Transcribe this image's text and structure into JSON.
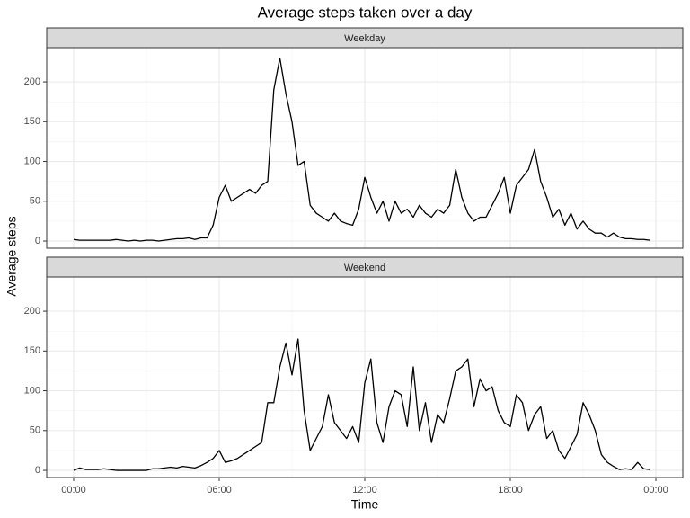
{
  "title": "Average steps taken over a day",
  "x_label": "Time",
  "y_label": "Average steps",
  "chart_data": [
    {
      "type": "line",
      "panel": "Weekday",
      "color": "#000000",
      "x": [
        0,
        0.25,
        0.5,
        0.75,
        1,
        1.25,
        1.5,
        1.75,
        2,
        2.25,
        2.5,
        2.75,
        3,
        3.25,
        3.5,
        3.75,
        4,
        4.25,
        4.5,
        4.75,
        5,
        5.25,
        5.5,
        5.75,
        6,
        6.25,
        6.5,
        6.75,
        7,
        7.25,
        7.5,
        7.75,
        8,
        8.25,
        8.5,
        8.75,
        9,
        9.25,
        9.5,
        9.75,
        10,
        10.25,
        10.5,
        10.75,
        11,
        11.25,
        11.5,
        11.75,
        12,
        12.25,
        12.5,
        12.75,
        13,
        13.25,
        13.5,
        13.75,
        14,
        14.25,
        14.5,
        14.75,
        15,
        15.25,
        15.5,
        15.75,
        16,
        16.25,
        16.5,
        16.75,
        17,
        17.25,
        17.5,
        17.75,
        18,
        18.25,
        18.5,
        18.75,
        19,
        19.25,
        19.5,
        19.75,
        20,
        20.25,
        20.5,
        20.75,
        21,
        21.25,
        21.5,
        21.75,
        22,
        22.25,
        22.5,
        22.75,
        23,
        23.25,
        23.5,
        23.75
      ],
      "values": [
        2,
        1,
        1,
        1,
        1,
        1,
        1,
        2,
        1,
        0,
        1,
        0,
        1,
        1,
        0,
        1,
        2,
        3,
        3,
        4,
        2,
        4,
        4,
        20,
        55,
        70,
        50,
        55,
        60,
        65,
        60,
        70,
        75,
        190,
        230,
        185,
        150,
        95,
        100,
        45,
        35,
        30,
        25,
        35,
        25,
        22,
        20,
        40,
        80,
        55,
        35,
        50,
        25,
        50,
        35,
        40,
        30,
        45,
        35,
        30,
        40,
        35,
        45,
        90,
        55,
        35,
        25,
        30,
        30,
        45,
        60,
        80,
        35,
        70,
        80,
        90,
        115,
        75,
        55,
        30,
        40,
        20,
        35,
        15,
        25,
        15,
        10,
        10,
        5,
        10,
        5,
        3,
        3,
        2,
        2,
        1
      ],
      "xlim": [
        -1.11,
        25.11
      ],
      "ylim": [
        -9,
        243
      ],
      "yticks": [
        0,
        50,
        100,
        150,
        200
      ],
      "grid": true
    },
    {
      "type": "line",
      "panel": "Weekend",
      "color": "#000000",
      "x": [
        0,
        0.25,
        0.5,
        0.75,
        1,
        1.25,
        1.5,
        1.75,
        2,
        2.25,
        2.5,
        2.75,
        3,
        3.25,
        3.5,
        3.75,
        4,
        4.25,
        4.5,
        4.75,
        5,
        5.25,
        5.5,
        5.75,
        6,
        6.25,
        6.5,
        6.75,
        7,
        7.25,
        7.5,
        7.75,
        8,
        8.25,
        8.5,
        8.75,
        9,
        9.25,
        9.5,
        9.75,
        10,
        10.25,
        10.5,
        10.75,
        11,
        11.25,
        11.5,
        11.75,
        12,
        12.25,
        12.5,
        12.75,
        13,
        13.25,
        13.5,
        13.75,
        14,
        14.25,
        14.5,
        14.75,
        15,
        15.25,
        15.5,
        15.75,
        16,
        16.25,
        16.5,
        16.75,
        17,
        17.25,
        17.5,
        17.75,
        18,
        18.25,
        18.5,
        18.75,
        19,
        19.25,
        19.5,
        19.75,
        20,
        20.25,
        20.5,
        20.75,
        21,
        21.25,
        21.5,
        21.75,
        22,
        22.25,
        22.5,
        22.75,
        23,
        23.25,
        23.5,
        23.75
      ],
      "values": [
        0,
        3,
        1,
        1,
        1,
        2,
        1,
        0,
        0,
        0,
        0,
        0,
        0,
        2,
        2,
        3,
        4,
        3,
        5,
        4,
        3,
        6,
        10,
        15,
        25,
        10,
        12,
        15,
        20,
        25,
        30,
        35,
        85,
        85,
        130,
        160,
        120,
        165,
        75,
        25,
        40,
        55,
        95,
        60,
        50,
        40,
        55,
        35,
        110,
        140,
        60,
        35,
        80,
        100,
        95,
        55,
        130,
        50,
        85,
        35,
        70,
        60,
        90,
        125,
        130,
        140,
        80,
        115,
        100,
        105,
        75,
        60,
        55,
        95,
        85,
        50,
        70,
        80,
        40,
        50,
        25,
        15,
        30,
        45,
        85,
        70,
        50,
        20,
        10,
        5,
        1,
        2,
        1,
        10,
        2,
        1
      ],
      "xlim": [
        -1.11,
        25.11
      ],
      "ylim": [
        -9,
        243
      ],
      "yticks": [
        0,
        50,
        100,
        150,
        200
      ],
      "grid": true,
      "xticks": [
        {
          "value": 0,
          "label": "00:00"
        },
        {
          "value": 6,
          "label": "06:00"
        },
        {
          "value": 12,
          "label": "12:00"
        },
        {
          "value": 18,
          "label": "18:00"
        },
        {
          "value": 24,
          "label": "00:00"
        }
      ]
    }
  ]
}
